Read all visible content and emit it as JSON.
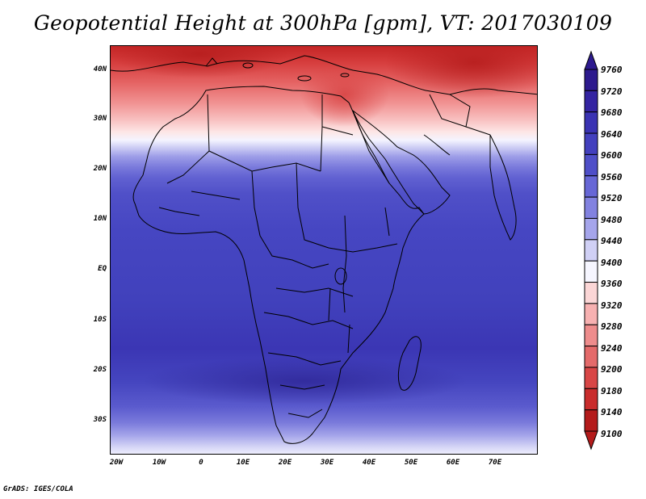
{
  "title": "Geopotential Height at 300hPa [gpm], VT: 2017030109",
  "credit": "GrADS: IGES/COLA",
  "map": {
    "region": "Africa and Middle East",
    "lon_range": [
      -22,
      80
    ],
    "lat_range": [
      -37,
      45
    ],
    "y_ticks": [
      "40N",
      "30N",
      "20N",
      "10N",
      "EQ",
      "10S",
      "20S",
      "30S"
    ],
    "x_ticks": [
      "20W",
      "10W",
      "0",
      "10E",
      "20E",
      "30E",
      "40E",
      "50E",
      "60E",
      "70E"
    ]
  },
  "colorbar": {
    "levels": [
      "9760",
      "9720",
      "9680",
      "9640",
      "9600",
      "9560",
      "9520",
      "9480",
      "9440",
      "9400",
      "9360",
      "9320",
      "9280",
      "9240",
      "9200",
      "9180",
      "9140",
      "9100"
    ],
    "colors": [
      "#2d1a8e",
      "#3424a2",
      "#3a33b3",
      "#4340be",
      "#4f4fc8",
      "#6767d6",
      "#8282e0",
      "#a5a5eb",
      "#d0d0f5",
      "#f6f6ff",
      "#fbd6d6",
      "#f7b1b1",
      "#ee8c8c",
      "#e46a6a",
      "#d84646",
      "#c92c2c",
      "#b41b1b"
    ]
  }
}
